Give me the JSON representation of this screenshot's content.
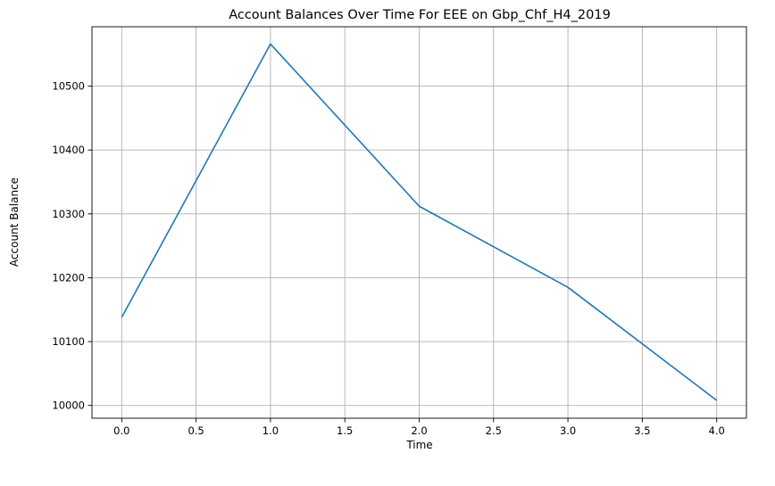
{
  "chart_data": {
    "type": "line",
    "title": "Account Balances Over Time For EEE on Gbp_Chf_H4_2019",
    "xlabel": "Time",
    "ylabel": "Account Balance",
    "x": [
      0,
      1,
      2,
      3,
      4
    ],
    "series": [
      {
        "values": [
          10138,
          10566,
          10312,
          10185,
          10008
        ],
        "color": "#1f77b4"
      }
    ],
    "xlim": [
      -0.2,
      4.2
    ],
    "ylim": [
      9980,
      10593
    ],
    "xticks": [
      0.0,
      0.5,
      1.0,
      1.5,
      2.0,
      2.5,
      3.0,
      3.5,
      4.0
    ],
    "xtick_labels": [
      "0.0",
      "0.5",
      "1.0",
      "1.5",
      "2.0",
      "2.5",
      "3.0",
      "3.5",
      "4.0"
    ],
    "yticks": [
      10000,
      10100,
      10200,
      10300,
      10400,
      10500
    ],
    "ytick_labels": [
      "10000",
      "10100",
      "10200",
      "10300",
      "10400",
      "10500"
    ],
    "grid": true,
    "grid_color": "#b0b0b0"
  }
}
